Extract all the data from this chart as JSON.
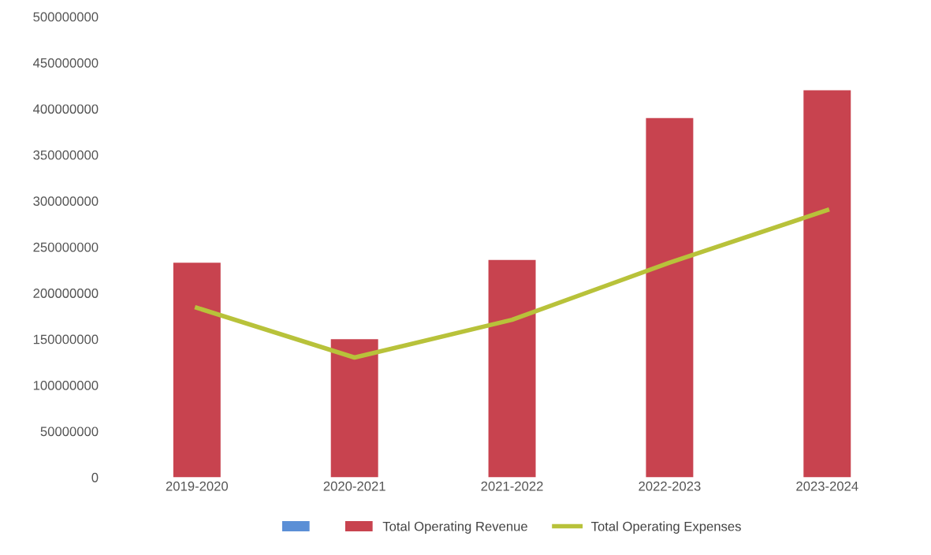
{
  "chart_data": {
    "type": "bar",
    "categories": [
      "2019-2020",
      "2020-2021",
      "2021-2022",
      "2022-2023",
      "2023-2024"
    ],
    "series": [
      {
        "color": "#5b8fd6",
        "values": [
          null,
          null,
          null,
          null,
          null
        ]
      },
      {
        "name": "Total Operating Revenue",
        "color": "#c8434f",
        "values": [
          233000000,
          150000000,
          236000000,
          390000000,
          420000000
        ]
      },
      {
        "name": "Total Operating Expenses",
        "color": "#b8c23a",
        "type": "line",
        "values": [
          184000000,
          130000000,
          171000000,
          233000000,
          290000000
        ]
      }
    ],
    "ylim": [
      0,
      500000000
    ],
    "yticks": [
      0,
      50000000,
      100000000,
      150000000,
      200000000,
      250000000,
      300000000,
      350000000,
      400000000,
      450000000,
      500000000
    ],
    "grid": false,
    "legend": "bottom"
  }
}
